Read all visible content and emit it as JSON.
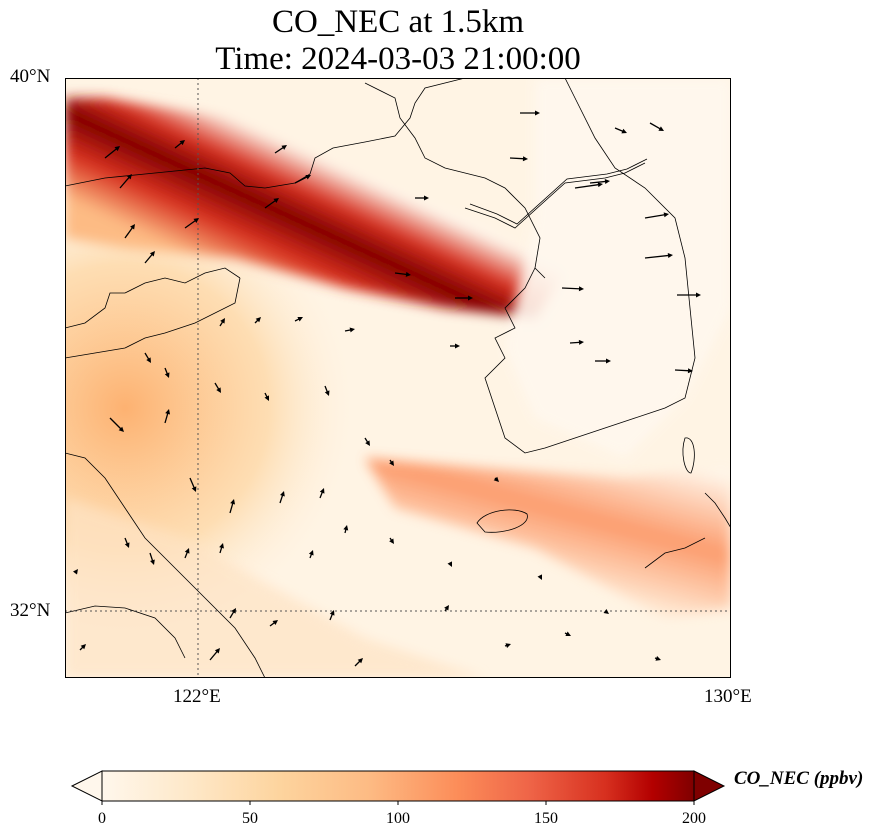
{
  "title": {
    "line1": "CO_NEC at 1.5km",
    "line2": "Time: 2024-03-03 21:00:00"
  },
  "map": {
    "lat_labels": [
      "40°N",
      "32°N"
    ],
    "lon_labels": [
      "122°E",
      "130°E"
    ],
    "gridline_lon": 122,
    "gridline_lat": 32,
    "colormap": "OrRd",
    "colors": {
      "low": "#fff7ec",
      "mid": "#fc8d59",
      "high": "#7f0000",
      "coast": "#000000",
      "gridline": "#555555"
    },
    "wind_vectors": "shown"
  },
  "colorbar": {
    "label": "CO_NEC (ppbv)",
    "ticks": [
      "0",
      "50",
      "100",
      "150",
      "200"
    ],
    "range": [
      0,
      200
    ],
    "extend": "both"
  }
}
